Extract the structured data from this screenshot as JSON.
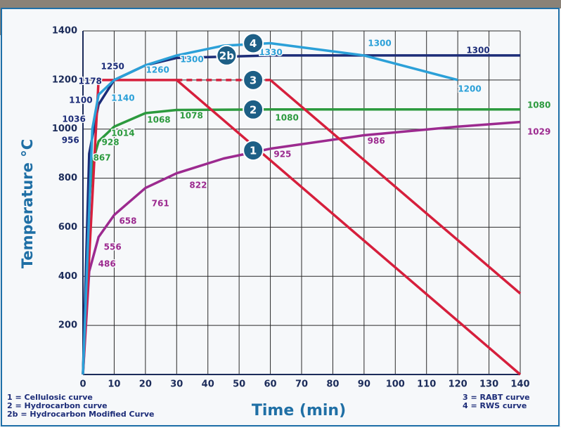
{
  "chart_data": {
    "type": "line",
    "y_label": "Temperature °C",
    "x_label": "Time (min)",
    "xlim": [
      0,
      140
    ],
    "ylim": [
      0,
      1400
    ],
    "xticks": [
      0,
      10,
      20,
      30,
      40,
      50,
      60,
      70,
      80,
      90,
      100,
      110,
      120,
      130,
      140
    ],
    "yticks": [
      200,
      400,
      600,
      800,
      1000,
      1200,
      1400
    ],
    "grid": true,
    "series": [
      {
        "color": "#9c2a8f",
        "dashed": false,
        "x": [
          0,
          2,
          5,
          10,
          20,
          30,
          45,
          60,
          90,
          120,
          140
        ],
        "values": [
          0,
          420,
          560,
          650,
          760,
          820,
          880,
          920,
          975,
          1010,
          1029
        ]
      },
      {
        "color": "#2c9a3e",
        "dashed": false,
        "x": [
          0,
          2,
          3,
          5,
          10,
          20,
          30,
          60,
          140
        ],
        "values": [
          0,
          700,
          860,
          950,
          1010,
          1065,
          1078,
          1080,
          1080
        ]
      },
      {
        "color": "#1c2c78",
        "dashed": false,
        "x": [
          0,
          2,
          5,
          10,
          20,
          30,
          60,
          140
        ],
        "values": [
          0,
          900,
          1100,
          1200,
          1260,
          1290,
          1300,
          1300
        ]
      },
      {
        "color": "#d61f3c",
        "dashed": false,
        "x": [
          0,
          5,
          30,
          140
        ],
        "values": [
          0,
          1200,
          1200,
          0
        ]
      },
      {
        "color": "#d61f3c",
        "dashed": true,
        "x": [
          30,
          60
        ],
        "values": [
          1200,
          1200
        ]
      },
      {
        "color": "#d61f3c",
        "dashed": false,
        "x": [
          60,
          140
        ],
        "values": [
          1200,
          330
        ]
      },
      {
        "color": "#2ba0d8",
        "dashed": false,
        "x": [
          0,
          3,
          5,
          10,
          20,
          30,
          45,
          60,
          90,
          120
        ],
        "values": [
          0,
          1000,
          1140,
          1200,
          1260,
          1300,
          1340,
          1350,
          1300,
          1200
        ]
      }
    ],
    "badges": [
      {
        "text": "4",
        "x": 54.5,
        "y": 1350
      },
      {
        "text": "2b",
        "x": 46,
        "y": 1300
      },
      {
        "text": "3",
        "x": 54.5,
        "y": 1200
      },
      {
        "text": "2",
        "x": 54.5,
        "y": 1080
      },
      {
        "text": "1",
        "x": 54.5,
        "y": 913
      }
    ],
    "annotations": [
      {
        "text": "486",
        "x": 7.7,
        "y": 449,
        "color": "#9c2a8f"
      },
      {
        "text": "556",
        "x": 9.5,
        "y": 518,
        "color": "#9c2a8f"
      },
      {
        "text": "658",
        "x": 14.4,
        "y": 624,
        "color": "#9c2a8f"
      },
      {
        "text": "761",
        "x": 24.8,
        "y": 696,
        "color": "#9c2a8f"
      },
      {
        "text": "822",
        "x": 36.9,
        "y": 770,
        "color": "#9c2a8f"
      },
      {
        "text": "925",
        "x": 63.9,
        "y": 896,
        "color": "#9c2a8f"
      },
      {
        "text": "986",
        "x": 93.9,
        "y": 950,
        "color": "#9c2a8f"
      },
      {
        "text": "1029",
        "x": 146,
        "y": 988,
        "color": "#9c2a8f"
      },
      {
        "text": "867",
        "x": 6.1,
        "y": 882,
        "color": "#2c9a3e"
      },
      {
        "text": "928",
        "x": 8.8,
        "y": 945,
        "color": "#2c9a3e"
      },
      {
        "text": "1014",
        "x": 12.8,
        "y": 982,
        "color": "#2c9a3e"
      },
      {
        "text": "1068",
        "x": 24.3,
        "y": 1036,
        "color": "#2c9a3e"
      },
      {
        "text": "1078",
        "x": 34.7,
        "y": 1054,
        "color": "#2c9a3e"
      },
      {
        "text": "1080",
        "x": 65.3,
        "y": 1045,
        "color": "#2c9a3e"
      },
      {
        "text": "1080",
        "x": 146,
        "y": 1096,
        "color": "#2c9a3e"
      },
      {
        "text": "956",
        "x": -4,
        "y": 953,
        "color": "#1c2c78"
      },
      {
        "text": "1036",
        "x": -2.9,
        "y": 1039,
        "color": "#1c2c78"
      },
      {
        "text": "1100",
        "x": -0.7,
        "y": 1117,
        "color": "#1c2c78"
      },
      {
        "text": "1178",
        "x": 2.3,
        "y": 1194,
        "color": "#1c2c78"
      },
      {
        "text": "1250",
        "x": 9.5,
        "y": 1254,
        "color": "#1c2c78"
      },
      {
        "text": "1300",
        "x": 126.5,
        "y": 1320,
        "color": "#1c2c78"
      },
      {
        "text": "1140",
        "x": 12.8,
        "y": 1125,
        "color": "#2ba0d8"
      },
      {
        "text": "1260",
        "x": 23.9,
        "y": 1240,
        "color": "#2ba0d8"
      },
      {
        "text": "1300",
        "x": 34.9,
        "y": 1283,
        "color": "#2ba0d8"
      },
      {
        "text": "1330",
        "x": 60.1,
        "y": 1311,
        "color": "#2ba0d8"
      },
      {
        "text": "1300",
        "x": 95,
        "y": 1348,
        "color": "#2ba0d8"
      },
      {
        "text": "1200",
        "x": 123.8,
        "y": 1162,
        "color": "#2ba0d8"
      }
    ],
    "legend": [
      "1 = Cellulosic curve",
      "2 = Hydrocarbon curve",
      "2b = Hydrocarbon Modified Curve",
      "3 = RABT curve",
      "4 = RWS curve"
    ]
  }
}
